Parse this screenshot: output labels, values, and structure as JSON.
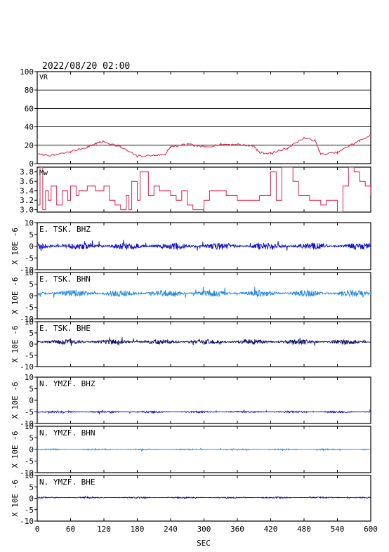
{
  "header": {
    "timestamp": "2022/08/20 02:00"
  },
  "colors": {
    "frame": "#000000",
    "vr_line": "#e0204a",
    "mw_line": "#e0204a",
    "bhz": "#1010c8",
    "bhn": "#2a8ad8",
    "bhe": "#101060"
  },
  "chart_data": [
    {
      "type": "line",
      "panel": "vr",
      "label": "VR",
      "ylim": [
        0,
        100
      ],
      "yticks": [
        "0",
        "20",
        "40",
        "60",
        "80",
        "100"
      ],
      "grid": "horizontal",
      "x": [
        0,
        30,
        60,
        90,
        105,
        120,
        150,
        180,
        210,
        230,
        240,
        270,
        300,
        330,
        360,
        390,
        400,
        420,
        450,
        480,
        500,
        510,
        540,
        560,
        580,
        600
      ],
      "series": [
        {
          "values": [
            10,
            9,
            13,
            18,
            22,
            24,
            18,
            8,
            9,
            10,
            18,
            21,
            18,
            21,
            21,
            19,
            12,
            11,
            17,
            28,
            25,
            10,
            12,
            19,
            25,
            31
          ]
        }
      ]
    },
    {
      "type": "line",
      "panel": "mw",
      "label": "Mw",
      "ylim": [
        2.95,
        3.9
      ],
      "yticks": [
        "3.0",
        "3.2",
        "3.4",
        "3.6",
        "3.8"
      ],
      "x": [
        0,
        5,
        10,
        15,
        20,
        25,
        35,
        45,
        55,
        60,
        70,
        75,
        90,
        100,
        105,
        120,
        130,
        140,
        150,
        160,
        165,
        170,
        180,
        185,
        200,
        210,
        220,
        240,
        250,
        260,
        270,
        280,
        300,
        310,
        330,
        340,
        360,
        380,
        400,
        420,
        430,
        440,
        460,
        470,
        490,
        510,
        520,
        540,
        550,
        560,
        570,
        580,
        590,
        600
      ],
      "series": [
        {
          "values": [
            3.1,
            3.9,
            3.0,
            3.4,
            3.2,
            3.5,
            3.1,
            3.4,
            3.2,
            3.5,
            3.3,
            3.4,
            3.5,
            3.5,
            3.4,
            3.5,
            3.2,
            3.1,
            3.0,
            3.3,
            3.0,
            3.6,
            3.2,
            3.8,
            3.3,
            3.5,
            3.4,
            3.3,
            3.2,
            3.4,
            3.1,
            3.0,
            3.2,
            3.4,
            3.4,
            3.3,
            3.2,
            3.2,
            3.3,
            3.8,
            3.2,
            3.9,
            3.6,
            3.3,
            3.2,
            3.1,
            3.2,
            2.95,
            3.5,
            3.9,
            3.8,
            3.6,
            3.5,
            3.3
          ]
        }
      ]
    },
    {
      "type": "line",
      "panel": "trace",
      "label": "E. TSK. BHZ",
      "unit": "X 10E -6",
      "ylim": [
        -10,
        10
      ],
      "yticks": [
        "-10",
        "-5",
        "0",
        "5",
        "10"
      ],
      "baseline": 0,
      "amplitude": 1.5,
      "color_key": "bhz"
    },
    {
      "type": "line",
      "panel": "trace",
      "label": "E. TSK. BHN",
      "unit": "X 10E -6",
      "ylim": [
        -10,
        10
      ],
      "yticks": [
        "-10",
        "-5",
        "0",
        "5",
        "10"
      ],
      "baseline": 1,
      "amplitude": 1.5,
      "color_key": "bhn"
    },
    {
      "type": "line",
      "panel": "trace",
      "label": "E. TSK. BHE",
      "unit": "X 10E -6",
      "ylim": [
        -10,
        10
      ],
      "yticks": [
        "-10",
        "-5",
        "0",
        "5",
        "10"
      ],
      "baseline": 1,
      "amplitude": 1.2,
      "color_key": "bhe"
    },
    {
      "type": "line",
      "panel": "trace",
      "label": "N. YMZF. BHZ",
      "unit": "X 10E -6",
      "ylim": [
        -10,
        10
      ],
      "yticks": [
        "-10",
        "-5",
        "0",
        "5",
        "10"
      ],
      "baseline": -5,
      "amplitude": 0.4,
      "color_key": "bhz"
    },
    {
      "type": "line",
      "panel": "trace",
      "label": "N. YMZF. BHN",
      "unit": "X 10E -6",
      "ylim": [
        -10,
        10
      ],
      "yticks": [
        "-10",
        "-5",
        "0",
        "5",
        "10"
      ],
      "baseline": 0,
      "amplitude": 0.3,
      "color_key": "bhn"
    },
    {
      "type": "line",
      "panel": "trace",
      "label": "N. YMZF. BHE",
      "unit": "X 10E -6",
      "ylim": [
        -10,
        10
      ],
      "yticks": [
        "-10",
        "-5",
        "0",
        "5",
        "10"
      ],
      "baseline": 0.3,
      "amplitude": 0.3,
      "color_key": "bhe"
    }
  ],
  "x_axis": {
    "xlim": [
      0,
      600
    ],
    "tick_labels": [
      "0",
      "60",
      "120",
      "180",
      "240",
      "300",
      "360",
      "420",
      "480",
      "540",
      "600"
    ],
    "xlabel": "SEC"
  }
}
